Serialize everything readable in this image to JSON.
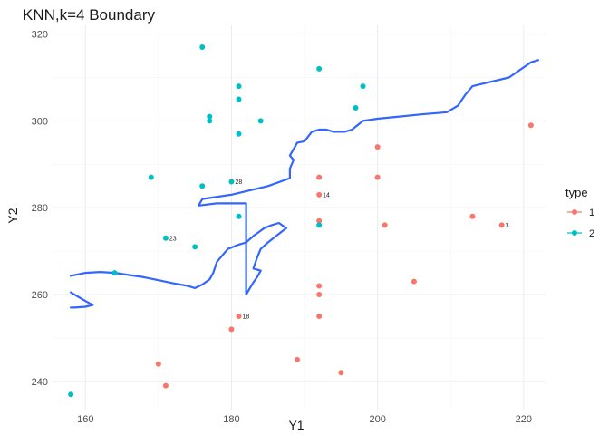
{
  "chart_data": {
    "type": "scatter",
    "title": "KNN,k=4 Boundary",
    "xlabel": "Y1",
    "ylabel": "Y2",
    "xlim": [
      155.5,
      223
    ],
    "ylim": [
      233.5,
      322
    ],
    "x_ticks": [
      160,
      180,
      200,
      220
    ],
    "y_ticks": [
      240,
      260,
      280,
      300,
      320
    ],
    "grid": true,
    "legend": {
      "title": "type",
      "position": "right",
      "entries": [
        {
          "label": "1",
          "color": "#F8766D"
        },
        {
          "label": "2",
          "color": "#00BFC4"
        }
      ]
    },
    "series": [
      {
        "name": "1",
        "color": "#F8766D",
        "points": [
          [
            170,
            244
          ],
          [
            171,
            239
          ],
          [
            180,
            252
          ],
          [
            181,
            255
          ],
          [
            189,
            245
          ],
          [
            192,
            287
          ],
          [
            192,
            283
          ],
          [
            192,
            277
          ],
          [
            192,
            262
          ],
          [
            192,
            260
          ],
          [
            192,
            255
          ],
          [
            195,
            242
          ],
          [
            200,
            294
          ],
          [
            200,
            287
          ],
          [
            201,
            276
          ],
          [
            205,
            263
          ],
          [
            213,
            278
          ],
          [
            217,
            276
          ],
          [
            221,
            299
          ]
        ]
      },
      {
        "name": "2",
        "color": "#00BFC4",
        "points": [
          [
            158,
            237
          ],
          [
            164,
            265
          ],
          [
            169,
            287
          ],
          [
            171,
            273
          ],
          [
            175,
            271
          ],
          [
            176,
            317
          ],
          [
            176,
            285
          ],
          [
            177,
            301
          ],
          [
            177,
            300
          ],
          [
            180,
            286
          ],
          [
            181,
            308
          ],
          [
            181,
            305
          ],
          [
            181,
            297
          ],
          [
            181,
            278
          ],
          [
            184,
            300
          ],
          [
            192,
            312
          ],
          [
            192,
            276
          ],
          [
            197,
            303
          ],
          [
            198,
            308
          ]
        ]
      }
    ],
    "point_labels": [
      {
        "text": "28",
        "x": 180,
        "y": 286
      },
      {
        "text": "14",
        "x": 192,
        "y": 283
      },
      {
        "text": "23",
        "x": 171,
        "y": 273
      },
      {
        "text": "3",
        "x": 217,
        "y": 276
      },
      {
        "text": "18",
        "x": 181,
        "y": 255
      }
    ],
    "boundary": {
      "color": "#3366FF",
      "points": [
        [
          158,
          264.3
        ],
        [
          160,
          265
        ],
        [
          162,
          265.2
        ],
        [
          164,
          265
        ],
        [
          166,
          264.5
        ],
        [
          168,
          264
        ],
        [
          170,
          263.3
        ],
        [
          172,
          262.6
        ],
        [
          174,
          262
        ],
        [
          175,
          261.5
        ],
        [
          176,
          262.3
        ],
        [
          177,
          263.5
        ],
        [
          177.5,
          265
        ],
        [
          178,
          267.5
        ],
        [
          179.5,
          270.5
        ],
        [
          181,
          271.5
        ],
        [
          182,
          272
        ],
        [
          183,
          273.5
        ],
        [
          184.5,
          275.3
        ],
        [
          185.5,
          276
        ],
        [
          186.5,
          276.5
        ],
        [
          187.5,
          275.3
        ],
        [
          186.5,
          274
        ],
        [
          185,
          272
        ],
        [
          184,
          270.5
        ],
        [
          183.5,
          268.5
        ],
        [
          183,
          266
        ],
        [
          184,
          265.5
        ],
        [
          183.5,
          264
        ],
        [
          183,
          262.8
        ],
        [
          182,
          260
        ],
        [
          182,
          268
        ],
        [
          182,
          281
        ],
        [
          178,
          281
        ],
        [
          175.5,
          280.5
        ],
        [
          176,
          282
        ],
        [
          180,
          283
        ],
        [
          185,
          285
        ],
        [
          188,
          286.8
        ],
        [
          188,
          289
        ],
        [
          188.5,
          291
        ],
        [
          188,
          292
        ],
        [
          189,
          295
        ],
        [
          190,
          295.3
        ],
        [
          191,
          297.5
        ],
        [
          192,
          298
        ],
        [
          193,
          298
        ],
        [
          194,
          297.5
        ],
        [
          195.5,
          297.5
        ],
        [
          196.5,
          298
        ],
        [
          198,
          300
        ],
        [
          200,
          300.5
        ],
        [
          203,
          301
        ],
        [
          206,
          301.5
        ],
        [
          209.5,
          302
        ],
        [
          211,
          303.5
        ],
        [
          212,
          306
        ],
        [
          213,
          308
        ],
        [
          215,
          308.8
        ],
        [
          218,
          310
        ],
        [
          221,
          313.5
        ],
        [
          222,
          314
        ]
      ]
    },
    "boundary_loop": {
      "color": "#3366FF",
      "points": [
        [
          158,
          260.5
        ],
        [
          159,
          259.5
        ],
        [
          160,
          258.5
        ],
        [
          161,
          257.6
        ],
        [
          160,
          257.2
        ],
        [
          158.5,
          257
        ],
        [
          158,
          257
        ]
      ]
    }
  }
}
